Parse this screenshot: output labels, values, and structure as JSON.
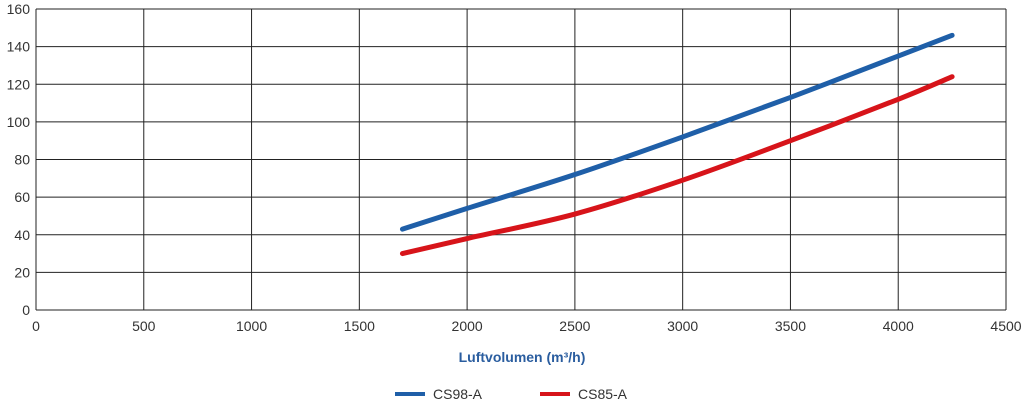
{
  "chart_data": {
    "type": "line",
    "title": "",
    "xlabel": "Luftvolumen (m³/h)",
    "ylabel": "",
    "xlim": [
      0,
      4500
    ],
    "ylim": [
      0,
      160
    ],
    "xticks": [
      0,
      500,
      1000,
      1500,
      2000,
      2500,
      3000,
      3500,
      4000,
      4500
    ],
    "yticks": [
      0,
      20,
      40,
      60,
      80,
      100,
      120,
      140,
      160
    ],
    "grid": true,
    "legend_position": "bottom-center",
    "series": [
      {
        "name": "CS98-A",
        "color": "#1f5fa8",
        "points": [
          [
            1700,
            43
          ],
          [
            2000,
            54
          ],
          [
            2500,
            72
          ],
          [
            3000,
            92
          ],
          [
            3500,
            113
          ],
          [
            4000,
            135
          ],
          [
            4250,
            146
          ]
        ]
      },
      {
        "name": "CS85-A",
        "color": "#d7141a",
        "points": [
          [
            1700,
            30
          ],
          [
            2000,
            38
          ],
          [
            2500,
            51
          ],
          [
            3000,
            69
          ],
          [
            3500,
            90
          ],
          [
            4000,
            112
          ],
          [
            4250,
            124
          ]
        ]
      }
    ]
  }
}
